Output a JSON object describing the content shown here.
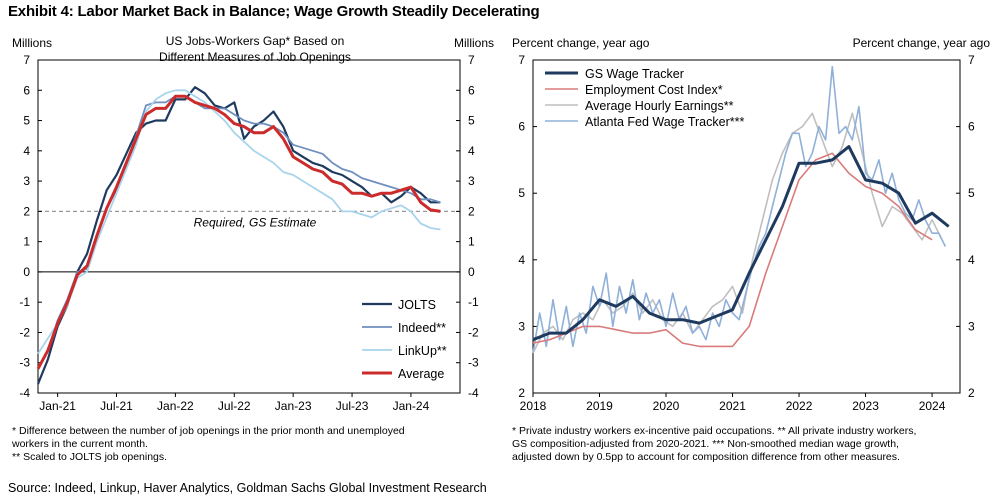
{
  "exhibit_title": "Exhibit 4: Labor Market Back in Balance; Wage Growth Steadily Decelerating",
  "source": "Source: Indeed, Linkup, Haver Analytics, Goldman Sachs Global Investment Research",
  "chart_data": [
    {
      "type": "line",
      "title_line1": "US Jobs-Workers Gap* Based on",
      "title_line2": "Different  Measures of Job Openings",
      "left_unit": "Millions",
      "right_unit": "Millions",
      "ylim": [
        -4,
        7
      ],
      "yticks": [
        -4,
        -3,
        -2,
        -1,
        0,
        1,
        2,
        3,
        4,
        5,
        6,
        7
      ],
      "x_tick_labels": [
        "Jan-21",
        "Jul-21",
        "Jan-22",
        "Jul-22",
        "Jan-23",
        "Jul-23",
        "Jan-24"
      ],
      "reference_line": {
        "y": 2,
        "label": "Required, GS Estimate",
        "color": "#999999"
      },
      "legend_position": "bottom-right",
      "series": [
        {
          "name": "JOLTS",
          "color": "#1f3a5f",
          "width": 2.2,
          "x": [
            "2020-11",
            "2020-12",
            "2021-01",
            "2021-02",
            "2021-03",
            "2021-04",
            "2021-05",
            "2021-06",
            "2021-07",
            "2021-08",
            "2021-09",
            "2021-10",
            "2021-11",
            "2021-12",
            "2022-01",
            "2022-02",
            "2022-03",
            "2022-04",
            "2022-05",
            "2022-06",
            "2022-07",
            "2022-08",
            "2022-09",
            "2022-10",
            "2022-11",
            "2022-12",
            "2023-01",
            "2023-02",
            "2023-03",
            "2023-04",
            "2023-05",
            "2023-06",
            "2023-07",
            "2023-08",
            "2023-09",
            "2023-10",
            "2023-11",
            "2023-12",
            "2024-01",
            "2024-02",
            "2024-03",
            "2024-04"
          ],
          "y": [
            -3.7,
            -2.9,
            -1.8,
            -1.1,
            0.0,
            0.6,
            1.7,
            2.7,
            3.2,
            3.9,
            4.6,
            4.9,
            5.0,
            5.0,
            5.7,
            5.7,
            6.1,
            5.9,
            5.5,
            5.4,
            5.6,
            4.4,
            4.8,
            5.0,
            5.3,
            4.8,
            4.0,
            3.8,
            3.6,
            3.5,
            3.3,
            3.2,
            3.0,
            2.8,
            2.5,
            2.6,
            2.3,
            2.5,
            2.8,
            2.6,
            2.3,
            2.3
          ]
        },
        {
          "name": "Indeed**",
          "color": "#6f8fbf",
          "width": 1.8,
          "x": [
            "2020-11",
            "2020-12",
            "2021-01",
            "2021-02",
            "2021-03",
            "2021-04",
            "2021-05",
            "2021-06",
            "2021-07",
            "2021-08",
            "2021-09",
            "2021-10",
            "2021-11",
            "2021-12",
            "2022-01",
            "2022-02",
            "2022-03",
            "2022-04",
            "2022-05",
            "2022-06",
            "2022-07",
            "2022-08",
            "2022-09",
            "2022-10",
            "2022-11",
            "2022-12",
            "2023-01",
            "2023-02",
            "2023-03",
            "2023-04",
            "2023-05",
            "2023-06",
            "2023-07",
            "2023-08",
            "2023-09",
            "2023-10",
            "2023-11",
            "2023-12",
            "2024-01",
            "2024-02",
            "2024-03",
            "2024-04"
          ],
          "y": [
            -3.2,
            -2.6,
            -1.6,
            -0.9,
            0.0,
            0.1,
            1.2,
            2.1,
            2.7,
            3.6,
            4.5,
            5.5,
            5.6,
            5.6,
            5.8,
            5.8,
            5.6,
            5.4,
            5.4,
            5.4,
            5.2,
            5.0,
            4.9,
            4.9,
            4.8,
            4.6,
            4.2,
            4.1,
            4.0,
            3.9,
            3.6,
            3.4,
            3.3,
            3.1,
            3.0,
            2.9,
            2.8,
            2.7,
            2.6,
            2.4,
            2.4,
            2.3
          ]
        },
        {
          "name": "LinkUp**",
          "color": "#a8d4ec",
          "width": 1.8,
          "x": [
            "2020-11",
            "2020-12",
            "2021-01",
            "2021-02",
            "2021-03",
            "2021-04",
            "2021-05",
            "2021-06",
            "2021-07",
            "2021-08",
            "2021-09",
            "2021-10",
            "2021-11",
            "2021-12",
            "2022-01",
            "2022-02",
            "2022-03",
            "2022-04",
            "2022-05",
            "2022-06",
            "2022-07",
            "2022-08",
            "2022-09",
            "2022-10",
            "2022-11",
            "2022-12",
            "2023-01",
            "2023-02",
            "2023-03",
            "2023-04",
            "2023-05",
            "2023-06",
            "2023-07",
            "2023-08",
            "2023-09",
            "2023-10",
            "2023-11",
            "2023-12",
            "2024-01",
            "2024-02",
            "2024-03",
            "2024-04"
          ],
          "y": [
            -2.7,
            -2.2,
            -1.7,
            -1.1,
            -0.2,
            0.0,
            1.0,
            1.8,
            2.6,
            3.4,
            4.2,
            5.3,
            5.7,
            5.9,
            6.0,
            6.0,
            5.8,
            5.6,
            5.3,
            5.0,
            4.6,
            4.3,
            4.0,
            3.8,
            3.6,
            3.3,
            3.2,
            3.0,
            2.8,
            2.6,
            2.4,
            2.0,
            2.0,
            1.9,
            1.8,
            2.0,
            2.1,
            2.2,
            2.0,
            1.6,
            1.45,
            1.4
          ]
        },
        {
          "name": "Average",
          "color": "#cc2b2b",
          "width": 3,
          "x": [
            "2020-11",
            "2020-12",
            "2021-01",
            "2021-02",
            "2021-03",
            "2021-04",
            "2021-05",
            "2021-06",
            "2021-07",
            "2021-08",
            "2021-09",
            "2021-10",
            "2021-11",
            "2021-12",
            "2022-01",
            "2022-02",
            "2022-03",
            "2022-04",
            "2022-05",
            "2022-06",
            "2022-07",
            "2022-08",
            "2022-09",
            "2022-10",
            "2022-11",
            "2022-12",
            "2023-01",
            "2023-02",
            "2023-03",
            "2023-04",
            "2023-05",
            "2023-06",
            "2023-07",
            "2023-08",
            "2023-09",
            "2023-10",
            "2023-11",
            "2023-12",
            "2024-01",
            "2024-02",
            "2024-03",
            "2024-04"
          ],
          "y": [
            -3.2,
            -2.6,
            -1.7,
            -1.0,
            -0.1,
            0.2,
            1.2,
            2.1,
            2.8,
            3.6,
            4.4,
            5.2,
            5.4,
            5.4,
            5.8,
            5.8,
            5.6,
            5.5,
            5.4,
            5.2,
            4.9,
            4.8,
            4.6,
            4.6,
            4.8,
            4.4,
            3.8,
            3.6,
            3.4,
            3.3,
            3.0,
            2.9,
            2.6,
            2.6,
            2.5,
            2.6,
            2.6,
            2.7,
            2.8,
            2.3,
            2.05,
            2.0
          ]
        }
      ],
      "footnotes": [
        "* Difference between the number of job openings in the prior month and unemployed",
        "workers in the current month.",
        "** Scaled to JOLTS job openings."
      ]
    },
    {
      "type": "line",
      "left_unit": "Percent change, year ago",
      "right_unit": "Percent change, year ago",
      "ylim": [
        2,
        7
      ],
      "yticks": [
        2,
        3,
        4,
        5,
        6,
        7
      ],
      "x_tick_labels": [
        "2018",
        "2019",
        "2020",
        "2021",
        "2022",
        "2023",
        "2024"
      ],
      "legend_position": "top-left",
      "series": [
        {
          "name": "GS Wage Tracker",
          "color": "#1f3a5f",
          "width": 3,
          "x": [
            2018.0,
            2018.25,
            2018.5,
            2018.75,
            2019.0,
            2019.25,
            2019.5,
            2019.75,
            2020.0,
            2020.25,
            2020.5,
            2020.75,
            2021.0,
            2021.25,
            2021.5,
            2021.75,
            2022.0,
            2022.25,
            2022.5,
            2022.75,
            2023.0,
            2023.25,
            2023.5,
            2023.75,
            2024.0,
            2024.25
          ],
          "y": [
            2.8,
            2.9,
            2.9,
            3.1,
            3.4,
            3.3,
            3.45,
            3.2,
            3.1,
            3.1,
            3.05,
            3.15,
            3.25,
            3.8,
            4.3,
            4.8,
            5.45,
            5.45,
            5.5,
            5.7,
            5.2,
            5.15,
            5.0,
            4.55,
            4.7,
            4.5
          ]
        },
        {
          "name": "Employment Cost Index*",
          "color": "#d97b7b",
          "width": 1.6,
          "x": [
            2018.0,
            2018.25,
            2018.5,
            2018.75,
            2019.0,
            2019.25,
            2019.5,
            2019.75,
            2020.0,
            2020.25,
            2020.5,
            2020.75,
            2021.0,
            2021.25,
            2021.5,
            2021.75,
            2022.0,
            2022.25,
            2022.5,
            2022.75,
            2023.0,
            2023.25,
            2023.5,
            2023.75,
            2024.0
          ],
          "y": [
            2.75,
            2.8,
            2.9,
            3.0,
            3.0,
            2.95,
            2.9,
            2.9,
            2.95,
            2.75,
            2.7,
            2.7,
            2.7,
            3.0,
            3.8,
            4.5,
            5.2,
            5.5,
            5.6,
            5.3,
            5.1,
            5.0,
            4.8,
            4.45,
            4.3
          ]
        },
        {
          "name": "Average Hourly Earnings**",
          "color": "#bfbfbf",
          "width": 1.6,
          "x": [
            2018.0,
            2018.15,
            2018.3,
            2018.45,
            2018.6,
            2018.75,
            2018.9,
            2019.05,
            2019.2,
            2019.35,
            2019.5,
            2019.65,
            2019.8,
            2019.95,
            2020.1,
            2020.25,
            2020.4,
            2020.55,
            2020.7,
            2020.85,
            2021.0,
            2021.15,
            2021.3,
            2021.45,
            2021.6,
            2021.75,
            2021.9,
            2022.05,
            2022.2,
            2022.35,
            2022.5,
            2022.65,
            2022.8,
            2022.95,
            2023.1,
            2023.25,
            2023.4,
            2023.55,
            2023.7,
            2023.85,
            2024.0,
            2024.15
          ],
          "y": [
            2.6,
            2.9,
            3.0,
            2.8,
            3.1,
            3.2,
            3.1,
            3.4,
            3.2,
            3.3,
            3.5,
            3.2,
            3.4,
            3.1,
            3.0,
            3.2,
            2.9,
            3.1,
            3.3,
            3.4,
            3.6,
            3.2,
            4.0,
            4.6,
            5.2,
            5.6,
            5.9,
            6.0,
            6.2,
            5.8,
            5.4,
            5.7,
            6.2,
            5.6,
            5.0,
            4.5,
            4.8,
            4.7,
            4.5,
            4.3,
            4.6,
            4.3
          ]
        },
        {
          "name": "Atlanta Fed Wage Tracker***",
          "color": "#8fb0d8",
          "width": 1.6,
          "x": [
            2018.0,
            2018.1,
            2018.2,
            2018.3,
            2018.4,
            2018.5,
            2018.6,
            2018.7,
            2018.8,
            2018.9,
            2019.0,
            2019.1,
            2019.2,
            2019.3,
            2019.4,
            2019.5,
            2019.6,
            2019.7,
            2019.8,
            2019.9,
            2020.0,
            2020.1,
            2020.2,
            2020.3,
            2020.4,
            2020.5,
            2020.6,
            2020.7,
            2020.8,
            2020.9,
            2021.0,
            2021.1,
            2021.2,
            2021.3,
            2021.4,
            2021.5,
            2021.6,
            2021.7,
            2021.8,
            2021.9,
            2022.0,
            2022.1,
            2022.2,
            2022.3,
            2022.4,
            2022.5,
            2022.6,
            2022.7,
            2022.8,
            2022.9,
            2023.0,
            2023.1,
            2023.2,
            2023.3,
            2023.4,
            2023.5,
            2023.6,
            2023.7,
            2023.8,
            2023.9,
            2024.0,
            2024.1,
            2024.2
          ],
          "y": [
            2.6,
            3.2,
            2.7,
            3.4,
            2.8,
            3.3,
            2.7,
            3.2,
            2.9,
            3.6,
            3.3,
            3.8,
            3.0,
            3.6,
            3.2,
            3.7,
            3.1,
            3.5,
            3.2,
            3.4,
            3.0,
            3.5,
            3.1,
            3.3,
            2.9,
            3.0,
            2.8,
            3.2,
            3.0,
            3.4,
            3.2,
            3.1,
            3.5,
            3.9,
            4.2,
            4.4,
            4.8,
            5.2,
            5.6,
            5.9,
            5.9,
            5.4,
            5.6,
            6.0,
            5.8,
            6.9,
            5.9,
            6.0,
            5.8,
            6.3,
            5.3,
            5.2,
            5.5,
            5.0,
            5.3,
            4.9,
            4.7,
            4.6,
            4.9,
            4.6,
            4.4,
            4.4,
            4.2
          ]
        }
      ],
      "footnotes": [
        "* Private industry workers ex-incentive paid occupations. ** All private industry workers,",
        "GS composition-adjusted from 2020-2021. *** Non-smoothed median wage growth,",
        "adjusted down by 0.5pp to account for composition difference from other measures."
      ]
    }
  ]
}
